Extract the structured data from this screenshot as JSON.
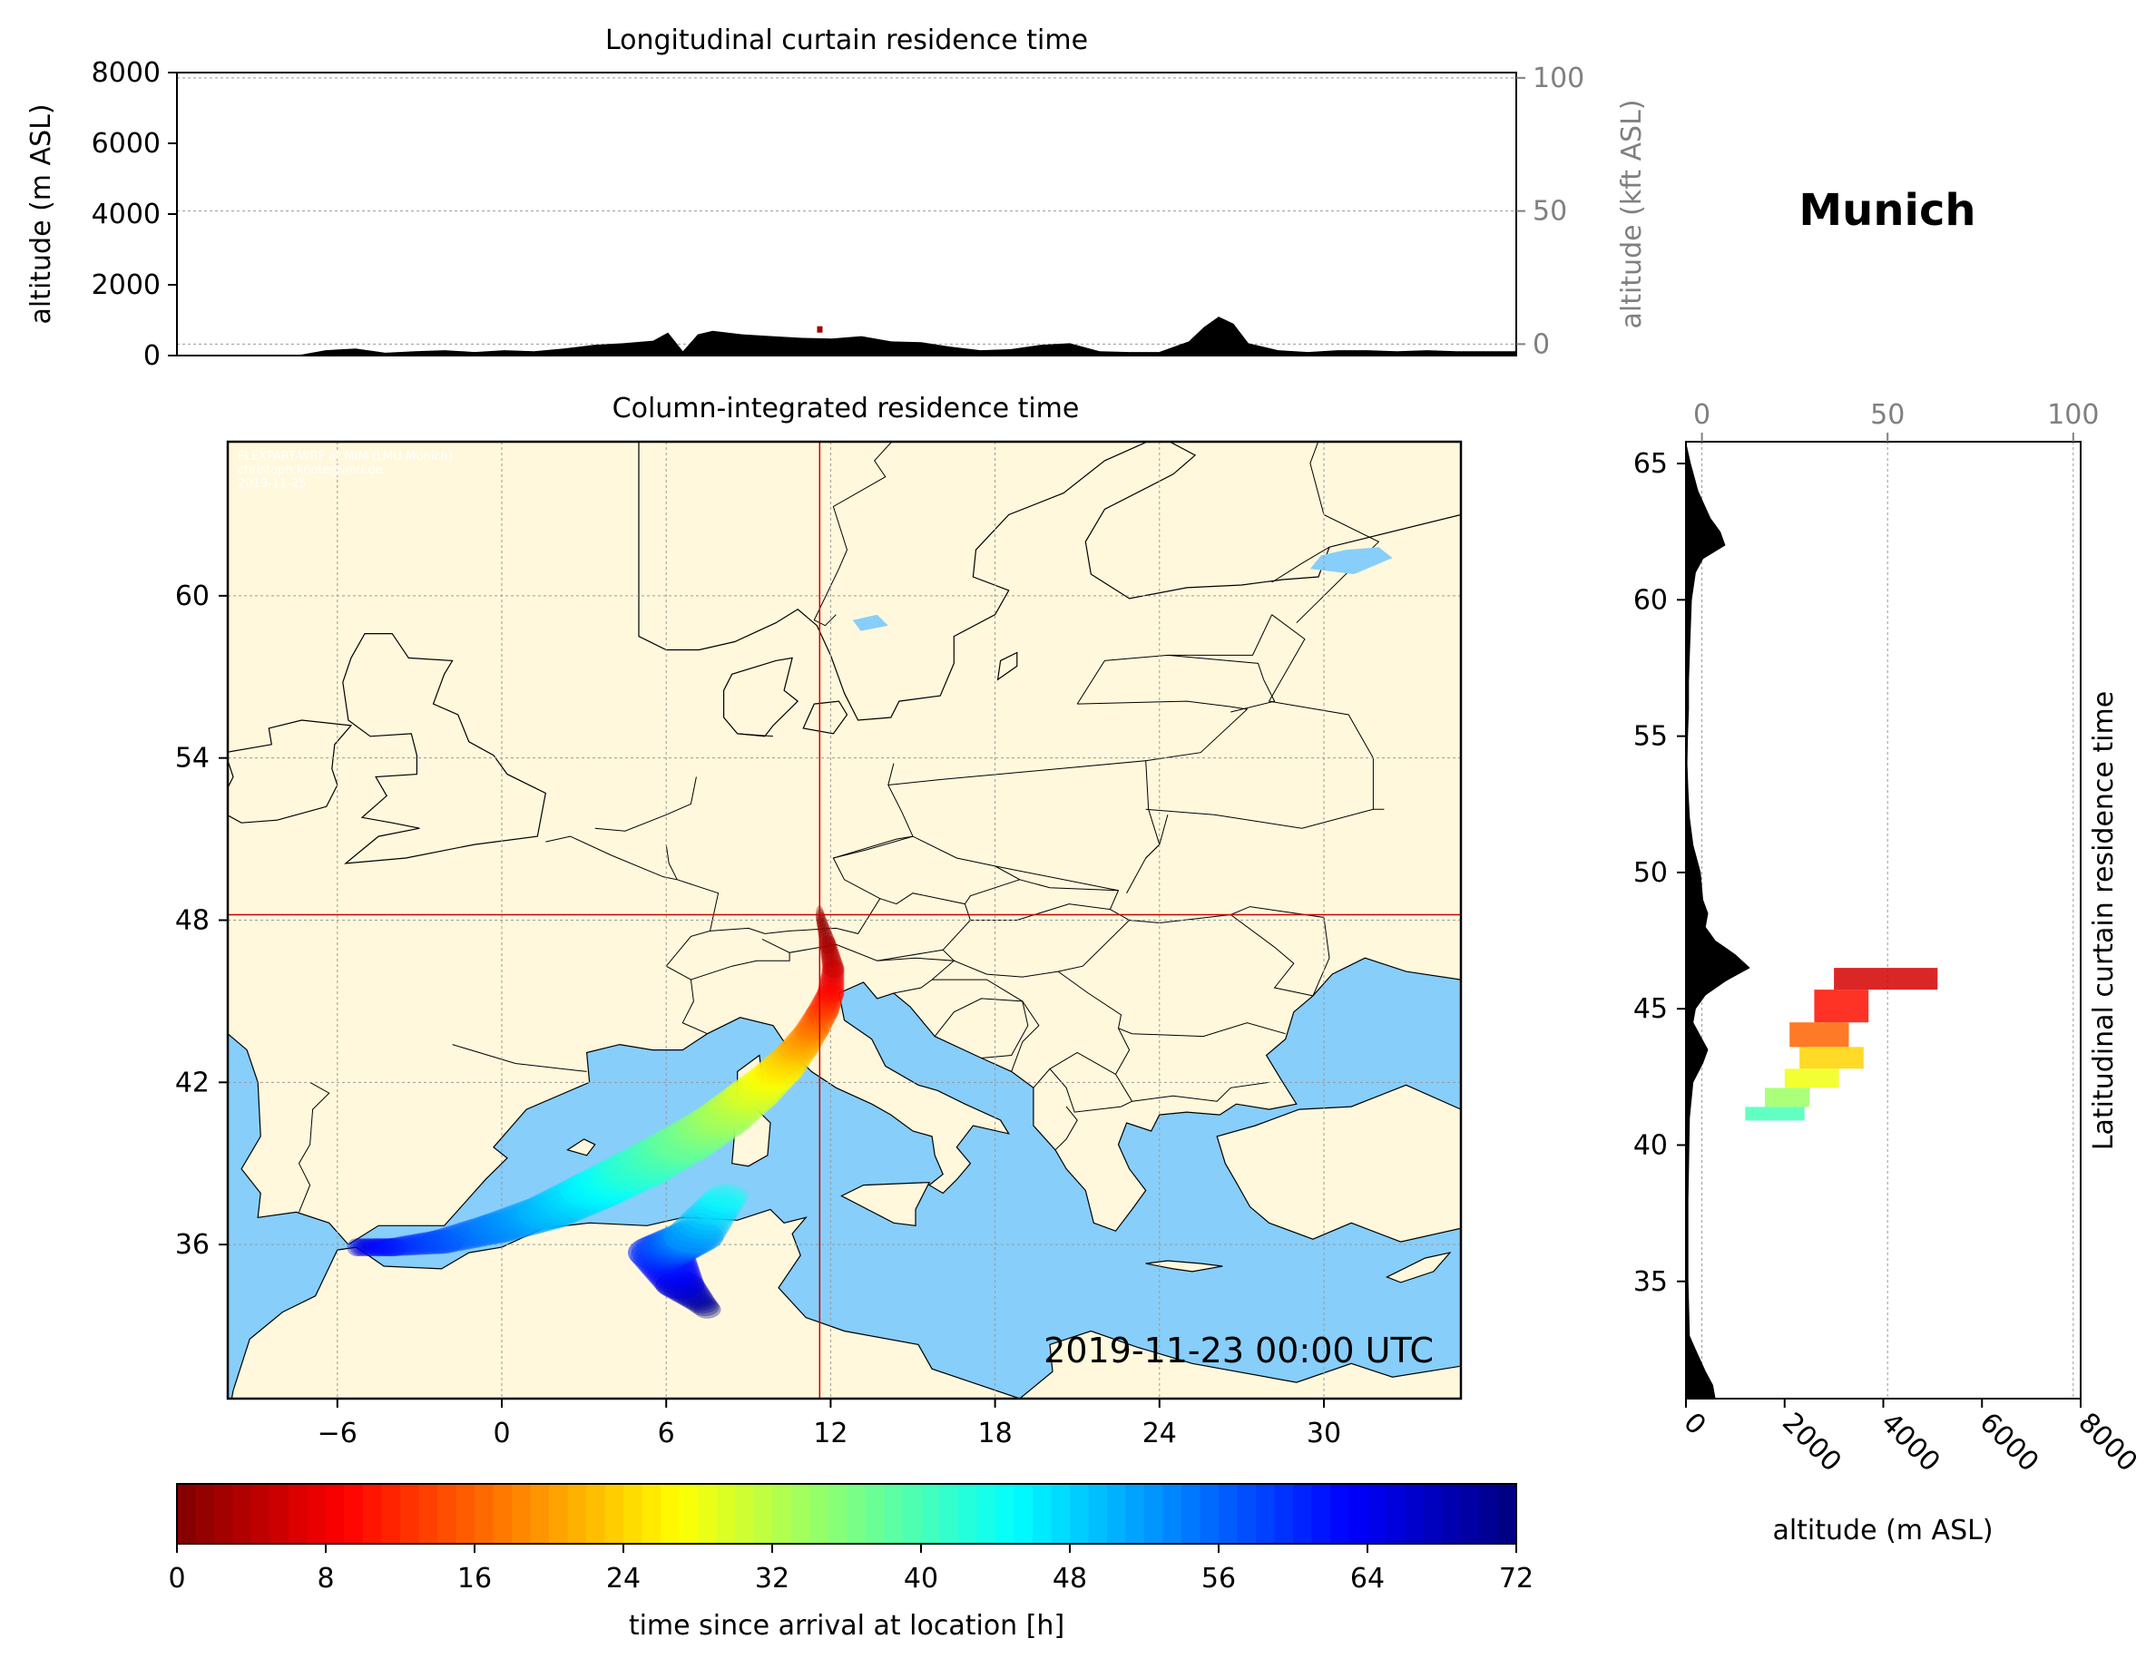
{
  "figure": {
    "location_title": "Munich",
    "timestamp": "2019-11-23 00:00 UTC",
    "credits": [
      "FLEXPART-WRF at MIM (LMU Munich)",
      "christoph.knote@lmu.de",
      "2019-11-25"
    ]
  },
  "colors": {
    "ocean": "#87cefa",
    "land": "#fff8dc",
    "crosshair": "#cc0000",
    "terrain": "#000000",
    "colormap": "jet reversed (0 = dark red, 72 = dark blue)"
  },
  "chart_data": [
    {
      "id": "longitudinal",
      "type": "area",
      "title": "Longitudinal curtain residence time",
      "ylabel": "altitude (m ASL)",
      "y2label": "altitude (kft ASL)",
      "ylim": [
        0,
        8000
      ],
      "yticks": [
        "0",
        "2000",
        "4000",
        "6000",
        "8000"
      ],
      "y2lim": [
        -4.3,
        102
      ],
      "y2ticks": [
        "0",
        "50",
        "100"
      ],
      "xlim": [
        -10,
        35
      ],
      "grid": true,
      "terrain": {
        "x": [
          -10,
          -6,
          -5,
          -4,
          -3,
          -2,
          -1,
          0,
          1,
          2,
          3,
          4,
          5,
          6,
          6.5,
          7,
          7.5,
          8,
          9,
          10,
          11,
          12,
          13,
          14,
          15,
          16,
          17,
          18,
          19,
          20,
          21,
          22,
          23,
          24,
          24.5,
          25,
          25.5,
          26,
          27,
          28,
          29,
          30,
          31,
          32,
          33,
          35
        ],
        "y": [
          0,
          0,
          150,
          200,
          80,
          120,
          150,
          100,
          150,
          120,
          200,
          300,
          350,
          420,
          650,
          120,
          600,
          700,
          600,
          550,
          500,
          480,
          550,
          400,
          380,
          250,
          150,
          180,
          300,
          350,
          120,
          100,
          100,
          400,
          800,
          1100,
          900,
          350,
          150,
          100,
          150,
          150,
          120,
          150,
          120,
          120
        ]
      },
      "residence_marks": [
        {
          "x": 11.6,
          "y": 700
        }
      ]
    },
    {
      "id": "column",
      "type": "heatmap",
      "title": "Column-integrated residence time",
      "xlim": [
        -10,
        35
      ],
      "ylim": [
        30.3,
        65.7
      ],
      "xticks": [
        "−6",
        "0",
        "6",
        "12",
        "18",
        "24",
        "30"
      ],
      "yticks": [
        "36",
        "42",
        "48",
        "54",
        "60"
      ],
      "grid": true,
      "release_point": {
        "lon": 11.6,
        "lat": 48.2
      },
      "plume": [
        {
          "t": 0,
          "lon": 11.6,
          "lat": 48.2,
          "width": 0.3
        },
        {
          "t": 3,
          "lon": 11.9,
          "lat": 47.1,
          "width": 0.6
        },
        {
          "t": 6,
          "lon": 12.1,
          "lat": 46.2,
          "width": 0.8
        },
        {
          "t": 10,
          "lon": 12.0,
          "lat": 45.3,
          "width": 1.0
        },
        {
          "t": 14,
          "lon": 11.7,
          "lat": 44.6,
          "width": 1.2
        },
        {
          "t": 18,
          "lon": 11.3,
          "lat": 43.9,
          "width": 1.3
        },
        {
          "t": 22,
          "lon": 10.8,
          "lat": 43.2,
          "width": 1.5
        },
        {
          "t": 26,
          "lon": 10.1,
          "lat": 42.4,
          "width": 1.8
        },
        {
          "t": 30,
          "lon": 9.1,
          "lat": 41.5,
          "width": 2.1
        },
        {
          "t": 34,
          "lon": 8.0,
          "lat": 40.6,
          "width": 2.3
        },
        {
          "t": 38,
          "lon": 6.6,
          "lat": 39.7,
          "width": 2.5
        },
        {
          "t": 42,
          "lon": 5.0,
          "lat": 38.8,
          "width": 2.6
        },
        {
          "t": 46,
          "lon": 3.4,
          "lat": 38.0,
          "width": 2.5
        },
        {
          "t": 50,
          "lon": 1.7,
          "lat": 37.2,
          "width": 2.3
        },
        {
          "t": 54,
          "lon": -0.2,
          "lat": 36.6,
          "width": 2.0
        },
        {
          "t": 58,
          "lon": -2.2,
          "lat": 36.1,
          "width": 1.6
        },
        {
          "t": 62,
          "lon": -4.0,
          "lat": 35.9,
          "width": 1.2
        },
        {
          "t": 66,
          "lon": -5.3,
          "lat": 35.9,
          "width": 0.7
        }
      ],
      "plume_branch": [
        {
          "t": 44,
          "lon": 8.2,
          "lat": 37.8,
          "width": 1.6
        },
        {
          "t": 52,
          "lon": 7.0,
          "lat": 36.3,
          "width": 2.2
        },
        {
          "t": 60,
          "lon": 5.8,
          "lat": 35.7,
          "width": 2.4
        },
        {
          "t": 66,
          "lon": 6.5,
          "lat": 34.5,
          "width": 1.8
        },
        {
          "t": 72,
          "lon": 7.5,
          "lat": 33.6,
          "width": 1.0
        }
      ]
    },
    {
      "id": "latitudinal",
      "type": "area",
      "title": "Latitudinal curtain residence time",
      "xlabel": "altitude (m ASL)",
      "x2label": "",
      "xlim": [
        0,
        8000
      ],
      "xticks": [
        "0",
        "2000",
        "4000",
        "6000",
        "8000"
      ],
      "x2lim": [
        -4.3,
        102
      ],
      "x2ticks": [
        "0",
        "50",
        "100"
      ],
      "ylim": [
        30.7,
        65.8
      ],
      "yticks": [
        "35",
        "40",
        "45",
        "50",
        "55",
        "60",
        "65"
      ],
      "grid": true,
      "terrain": {
        "lat": [
          30.7,
          31.2,
          31.7,
          32.5,
          33,
          35,
          38,
          41,
          42.3,
          43,
          43.5,
          44,
          44.5,
          45,
          45.5,
          46,
          46.5,
          47,
          47.5,
          48,
          48.5,
          49,
          50,
          51,
          52,
          53,
          54,
          55,
          56,
          57,
          58,
          59,
          60,
          61,
          61.5,
          62,
          62.5,
          63,
          64,
          65,
          65.8
        ],
        "alt": [
          600,
          550,
          400,
          200,
          80,
          50,
          50,
          80,
          150,
          350,
          450,
          300,
          150,
          200,
          400,
          800,
          1300,
          1000,
          600,
          400,
          450,
          350,
          300,
          150,
          80,
          50,
          30,
          40,
          60,
          60,
          80,
          100,
          120,
          200,
          350,
          800,
          700,
          500,
          250,
          100,
          0
        ]
      },
      "residence_blocks": [
        {
          "lat_min": 45.7,
          "lat_max": 46.5,
          "alt_min": 3000,
          "alt_max": 5100,
          "t": 6
        },
        {
          "lat_min": 44.5,
          "lat_max": 45.7,
          "alt_min": 2600,
          "alt_max": 3700,
          "t": 10
        },
        {
          "lat_min": 43.6,
          "lat_max": 44.5,
          "alt_min": 2100,
          "alt_max": 3300,
          "t": 16
        },
        {
          "lat_min": 42.8,
          "lat_max": 43.6,
          "alt_min": 2300,
          "alt_max": 3600,
          "t": 24
        },
        {
          "lat_min": 42.1,
          "lat_max": 42.8,
          "alt_min": 2000,
          "alt_max": 3100,
          "t": 28
        },
        {
          "lat_min": 41.4,
          "lat_max": 42.1,
          "alt_min": 1600,
          "alt_max": 2500,
          "t": 34
        },
        {
          "lat_min": 40.9,
          "lat_max": 41.4,
          "alt_min": 1200,
          "alt_max": 2400,
          "t": 40
        }
      ]
    },
    {
      "id": "colorbar",
      "type": "bar",
      "xlabel": "time since arrival at location [h]",
      "xlim": [
        0,
        72
      ],
      "ticks": [
        "0",
        "8",
        "16",
        "24",
        "32",
        "40",
        "48",
        "56",
        "64",
        "72"
      ]
    }
  ]
}
